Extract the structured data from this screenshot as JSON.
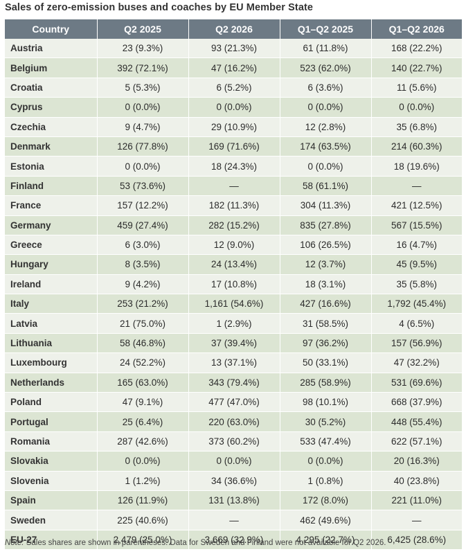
{
  "title": "Sales of zero-emission buses and coaches by EU Member State",
  "table": {
    "headers": [
      "Country",
      "Q2 2025",
      "Q2 2026",
      "Q1–Q2 2025",
      "Q1–Q2 2026"
    ],
    "rows": [
      [
        "Austria",
        "23 (9.3%)",
        "93 (21.3%)",
        "61 (11.8%)",
        "168 (22.2%)"
      ],
      [
        "Belgium",
        "392 (72.1%)",
        "47 (16.2%)",
        "523 (62.0%)",
        "140 (22.7%)"
      ],
      [
        "Croatia",
        "5 (5.3%)",
        "6 (5.2%)",
        "6 (3.6%)",
        "11 (5.6%)"
      ],
      [
        "Cyprus",
        "0 (0.0%)",
        "0 (0.0%)",
        "0 (0.0%)",
        "0 (0.0%)"
      ],
      [
        "Czechia",
        "9 (4.7%)",
        "29 (10.9%)",
        "12 (2.8%)",
        "35 (6.8%)"
      ],
      [
        "Denmark",
        "126 (77.8%)",
        "169 (71.6%)",
        "174 (63.5%)",
        "214 (60.3%)"
      ],
      [
        "Estonia",
        "0 (0.0%)",
        "18 (24.3%)",
        "0 (0.0%)",
        "18 (19.6%)"
      ],
      [
        "Finland",
        "53 (73.6%)",
        "—",
        "58 (61.1%)",
        "—"
      ],
      [
        "France",
        "157 (12.2%)",
        "182 (11.3%)",
        "304 (11.3%)",
        "421 (12.5%)"
      ],
      [
        "Germany",
        "459 (27.4%)",
        "282 (15.2%)",
        "835 (27.8%)",
        "567 (15.5%)"
      ],
      [
        "Greece",
        "6 (3.0%)",
        "12 (9.0%)",
        "106 (26.5%)",
        "16 (4.7%)"
      ],
      [
        "Hungary",
        "8 (3.5%)",
        "24 (13.4%)",
        "12 (3.7%)",
        "45 (9.5%)"
      ],
      [
        "Ireland",
        "9 (4.2%)",
        "17 (10.8%)",
        "18 (3.1%)",
        "35 (5.8%)"
      ],
      [
        "Italy",
        "253 (21.2%)",
        "1,161 (54.6%)",
        "427 (16.6%)",
        "1,792 (45.4%)"
      ],
      [
        "Latvia",
        "21 (75.0%)",
        "1 (2.9%)",
        "31 (58.5%)",
        "4 (6.5%)"
      ],
      [
        "Lithuania",
        "58 (46.8%)",
        "37 (39.4%)",
        "97 (36.2%)",
        "157 (56.9%)"
      ],
      [
        "Luxembourg",
        "24 (52.2%)",
        "13 (37.1%)",
        "50 (33.1%)",
        "47 (32.2%)"
      ],
      [
        "Netherlands",
        "165 (63.0%)",
        "343 (79.4%)",
        "285 (58.9%)",
        "531 (69.6%)"
      ],
      [
        "Poland",
        "47 (9.1%)",
        "477 (47.0%)",
        "98 (10.1%)",
        "668 (37.9%)"
      ],
      [
        "Portugal",
        "25 (6.4%)",
        "220 (63.0%)",
        "30 (5.2%)",
        "448 (55.4%)"
      ],
      [
        "Romania",
        "287 (42.6%)",
        "373 (60.2%)",
        "533 (47.4%)",
        "622 (57.1%)"
      ],
      [
        "Slovakia",
        "0 (0.0%)",
        "0 (0.0%)",
        "0 (0.0%)",
        "20 (16.3%)"
      ],
      [
        "Slovenia",
        "1 (1.2%)",
        "34 (36.6%)",
        "1 (0.8%)",
        "40 (23.8%)"
      ],
      [
        "Spain",
        "126 (11.9%)",
        "131 (13.8%)",
        "172 (8.0%)",
        "221 (11.0%)"
      ],
      [
        "Sweden",
        "225 (40.6%)",
        "—",
        "462 (49.6%)",
        "—"
      ],
      [
        "EU-27",
        "2,479 (25.0%)",
        "3,669 (32.9%)",
        "4,295 (22.7%)",
        "6,425 (28.6%)"
      ]
    ]
  },
  "note": {
    "label": "Note:",
    "text": " Sales shares are shown in parentheses. Data for Sweden and Finland were not available for Q2 2026."
  },
  "colors": {
    "header_bg": "#6d7a85",
    "row_light": "#eef1ea",
    "row_dark": "#dce5d3"
  }
}
